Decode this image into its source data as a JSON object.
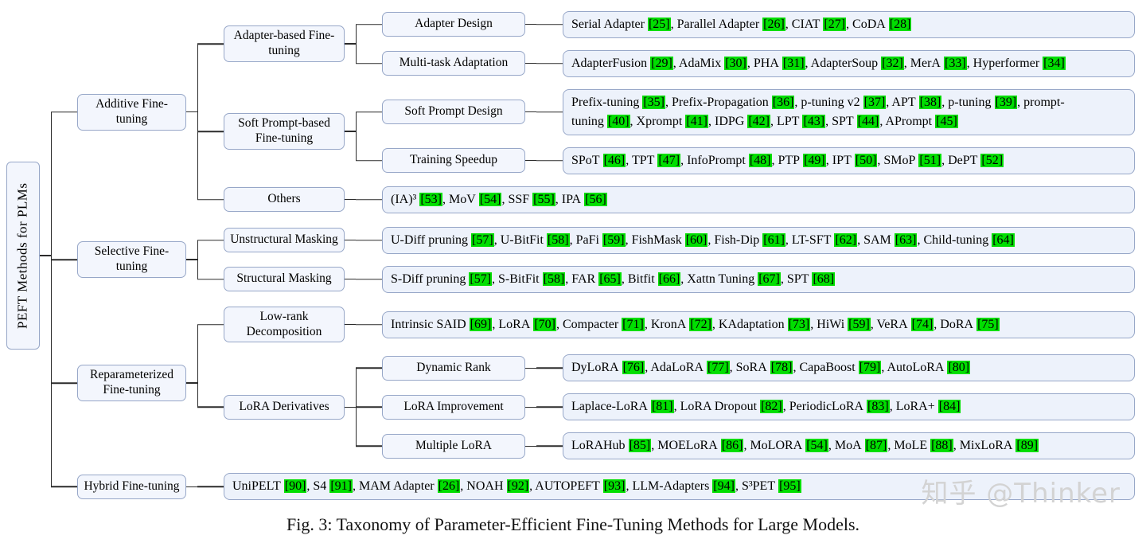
{
  "colors": {
    "cite_bg": "#00DE00",
    "box_border": "#97A7C8",
    "box_fill": "#F3F6FD",
    "leaf_fill": "#EDF2FB",
    "line": "#2B2B2B",
    "text": "#000000",
    "watermark": "#D3D3D3"
  },
  "root_label": "PEFT Methods for PLMs",
  "caption": "Fig. 3: Taxonomy of Parameter-Efficient Fine-Tuning Methods for Large Models.",
  "watermark": "知乎 @Thinker",
  "nodes": {
    "additive": "Additive Fine-tuning",
    "adapter_based": "Adapter-based Fine-tuning",
    "adapter_design": "Adapter Design",
    "multi_task": "Multi-task Adaptation",
    "soft_prompt_based": "Soft Prompt-based Fine-tuning",
    "soft_prompt_design": "Soft Prompt Design",
    "training_speedup": "Training Speedup",
    "others": "Others",
    "selective": "Selective Fine-tuning",
    "unstructural": "Unstructural Masking",
    "structural": "Structural Masking",
    "reparam": "Reparameterized Fine-tuning",
    "low_rank": "Low-rank Decomposition",
    "lora_derivatives": "LoRA Derivatives",
    "dynamic_rank": "Dynamic Rank",
    "lora_improvement": "LoRA Improvement",
    "multiple_lora": "Multiple LoRA",
    "hybrid": "Hybrid Fine-tuning"
  },
  "leaves": {
    "adapter_design": [
      {
        "t": "Serial Adapter",
        "c": "25"
      },
      {
        "t": "Parallel Adapter",
        "c": "26"
      },
      {
        "t": "CIAT",
        "c": "27"
      },
      {
        "t": "CoDA",
        "c": "28"
      }
    ],
    "multi_task": [
      {
        "t": "AdapterFusion",
        "c": "29"
      },
      {
        "t": "AdaMix",
        "c": "30"
      },
      {
        "t": "PHA",
        "c": "31"
      },
      {
        "t": "AdapterSoup",
        "c": "32"
      },
      {
        "t": "MerA",
        "c": "33"
      },
      {
        "t": "Hyperformer",
        "c": "34"
      }
    ],
    "soft_prompt_design": [
      {
        "t": "Prefix-tuning",
        "c": "35"
      },
      {
        "t": "Prefix-Propagation",
        "c": "36"
      },
      {
        "t": "p-tuning v2",
        "c": "37"
      },
      {
        "t": "APT",
        "c": "38"
      },
      {
        "t": "p-tuning",
        "c": "39"
      },
      {
        "t": "prompt-tuning",
        "c": "40"
      },
      {
        "t": "Xprompt",
        "c": "41"
      },
      {
        "t": "IDPG",
        "c": "42"
      },
      {
        "t": "LPT",
        "c": "43"
      },
      {
        "t": "SPT",
        "c": "44"
      },
      {
        "t": "APrompt",
        "c": "45"
      }
    ],
    "training_speedup": [
      {
        "t": "SPoT",
        "c": "46"
      },
      {
        "t": "TPT",
        "c": "47"
      },
      {
        "t": "InfoPrompt",
        "c": "48"
      },
      {
        "t": "PTP",
        "c": "49"
      },
      {
        "t": "IPT",
        "c": "50"
      },
      {
        "t": "SMoP",
        "c": "51"
      },
      {
        "t": "DePT",
        "c": "52"
      }
    ],
    "others": [
      {
        "t": "(IA)³",
        "c": "53"
      },
      {
        "t": "MoV",
        "c": "54"
      },
      {
        "t": "SSF",
        "c": "55"
      },
      {
        "t": "IPA",
        "c": "56"
      }
    ],
    "unstructural": [
      {
        "t": "U-Diff pruning",
        "c": "57"
      },
      {
        "t": "U-BitFit",
        "c": "58"
      },
      {
        "t": "PaFi",
        "c": "59"
      },
      {
        "t": "FishMask",
        "c": "60"
      },
      {
        "t": "Fish-Dip",
        "c": "61"
      },
      {
        "t": "LT-SFT",
        "c": "62"
      },
      {
        "t": "SAM",
        "c": "63"
      },
      {
        "t": "Child-tuning",
        "c": "64"
      }
    ],
    "structural": [
      {
        "t": "S-Diff pruning",
        "c": "57"
      },
      {
        "t": "S-BitFit",
        "c": "58"
      },
      {
        "t": "FAR",
        "c": "65"
      },
      {
        "t": "Bitfit",
        "c": "66"
      },
      {
        "t": "Xattn Tuning",
        "c": "67"
      },
      {
        "t": "SPT",
        "c": "68"
      }
    ],
    "low_rank": [
      {
        "t": "Intrinsic SAID",
        "c": "69"
      },
      {
        "t": "LoRA",
        "c": "70"
      },
      {
        "t": "Compacter",
        "c": "71"
      },
      {
        "t": "KronA",
        "c": "72"
      },
      {
        "t": "KAdaptation",
        "c": "73"
      },
      {
        "t": "HiWi",
        "c": "59"
      },
      {
        "t": "VeRA",
        "c": "74"
      },
      {
        "t": "DoRA",
        "c": "75"
      }
    ],
    "dynamic_rank": [
      {
        "t": "DyLoRA",
        "c": "76"
      },
      {
        "t": "AdaLoRA",
        "c": "77"
      },
      {
        "t": "SoRA",
        "c": "78"
      },
      {
        "t": "CapaBoost",
        "c": "79"
      },
      {
        "t": "AutoLoRA",
        "c": "80"
      }
    ],
    "lora_improvement": [
      {
        "t": "Laplace-LoRA",
        "c": "81"
      },
      {
        "t": "LoRA Dropout",
        "c": "82"
      },
      {
        "t": "PeriodicLoRA",
        "c": "83"
      },
      {
        "t": "LoRA+",
        "c": "84"
      }
    ],
    "multiple_lora": [
      {
        "t": "LoRAHub",
        "c": "85"
      },
      {
        "t": "MOELoRA",
        "c": "86"
      },
      {
        "t": "MoLORA",
        "c": "54"
      },
      {
        "t": "MoA",
        "c": "87"
      },
      {
        "t": "MoLE",
        "c": "88"
      },
      {
        "t": "MixLoRA",
        "c": "89"
      }
    ],
    "hybrid": [
      {
        "t": "UniPELT",
        "c": "90"
      },
      {
        "t": "S4",
        "c": "91"
      },
      {
        "t": "MAM Adapter",
        "c": "26"
      },
      {
        "t": "NOAH",
        "c": "92"
      },
      {
        "t": "AUTOPEFT",
        "c": "93"
      },
      {
        "t": "LLM-Adapters",
        "c": "94"
      },
      {
        "t": "S³PET",
        "c": "95"
      }
    ]
  }
}
